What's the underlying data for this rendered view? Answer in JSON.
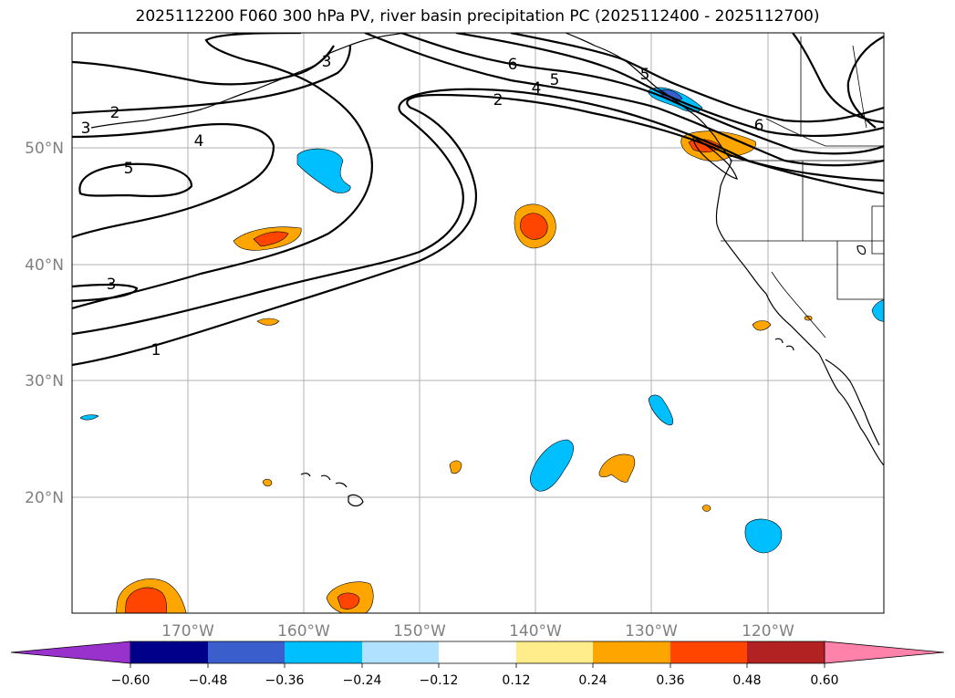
{
  "title": "2025112200 F060 300 hPa PV, river basin precipitation PC (2025112400 - 2025112700)",
  "lat_labels": [
    "50°N",
    "40°N",
    "30°N",
    "20°N"
  ],
  "lon_labels": [
    "170°W",
    "160°W",
    "150°W",
    "140°W",
    "130°W",
    "120°W"
  ],
  "contour_labels": [
    "1",
    "2",
    "3",
    "3",
    "3",
    "4",
    "4",
    "5",
    "5",
    "5",
    "6",
    "6",
    "2"
  ],
  "colorbar": {
    "colors": [
      "#9932cc",
      "#00008b",
      "#3a5fcd",
      "#00bfff",
      "#b0e2ff",
      "#ffffff",
      "#ffec8b",
      "#ffa500",
      "#ff4500",
      "#b22222",
      "#ff82ab"
    ],
    "tick_labels": [
      "−0.60",
      "−0.48",
      "−0.36",
      "−0.24",
      "−0.12",
      "0.12",
      "0.24",
      "0.36",
      "0.48",
      "0.60"
    ]
  },
  "colors": {
    "grid": "#b0b0b0",
    "tick_text": "#808080",
    "contour": "#000000"
  }
}
